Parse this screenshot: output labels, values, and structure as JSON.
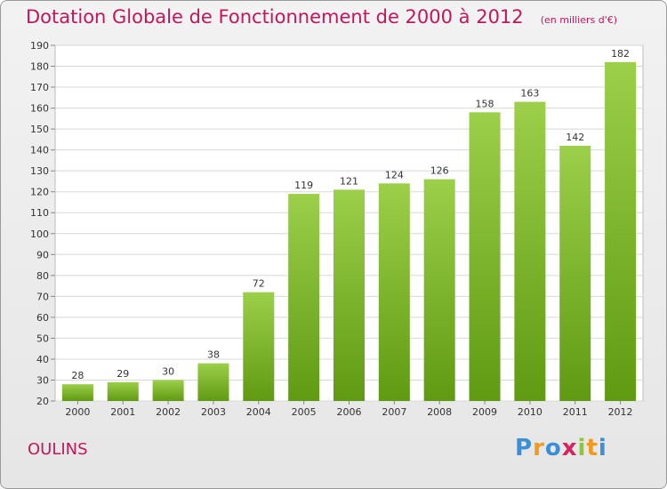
{
  "header": {
    "title": "Dotation Globale de Fonctionnement de 2000 à 2012",
    "subtitle": "(en milliers d'€)"
  },
  "footer": {
    "city": "OULINS",
    "logo_letters": [
      "P",
      "r",
      "o",
      "x",
      "i",
      "t",
      "i"
    ],
    "logo_colors": [
      "#3a8fd6",
      "#f29a1f",
      "#3a8fd6",
      "#d6245c",
      "#8cc63f",
      "#f29a1f",
      "#3a8fd6"
    ]
  },
  "chart_data": {
    "type": "bar",
    "title": "Dotation Globale de Fonctionnement de 2000 à 2012",
    "subtitle": "(en milliers d'€)",
    "categories": [
      "2000",
      "2001",
      "2002",
      "2003",
      "2004",
      "2005",
      "2006",
      "2007",
      "2008",
      "2009",
      "2010",
      "2011",
      "2012"
    ],
    "values": [
      28,
      29,
      30,
      38,
      72,
      119,
      121,
      124,
      126,
      158,
      163,
      142,
      182
    ],
    "ylim": [
      20,
      190
    ],
    "yticks": [
      20,
      30,
      40,
      50,
      60,
      70,
      80,
      90,
      100,
      110,
      120,
      130,
      140,
      150,
      160,
      170,
      180,
      190
    ],
    "grid": true,
    "bar_color_top": "#9ccf4a",
    "bar_color_bottom": "#5f9a12"
  }
}
